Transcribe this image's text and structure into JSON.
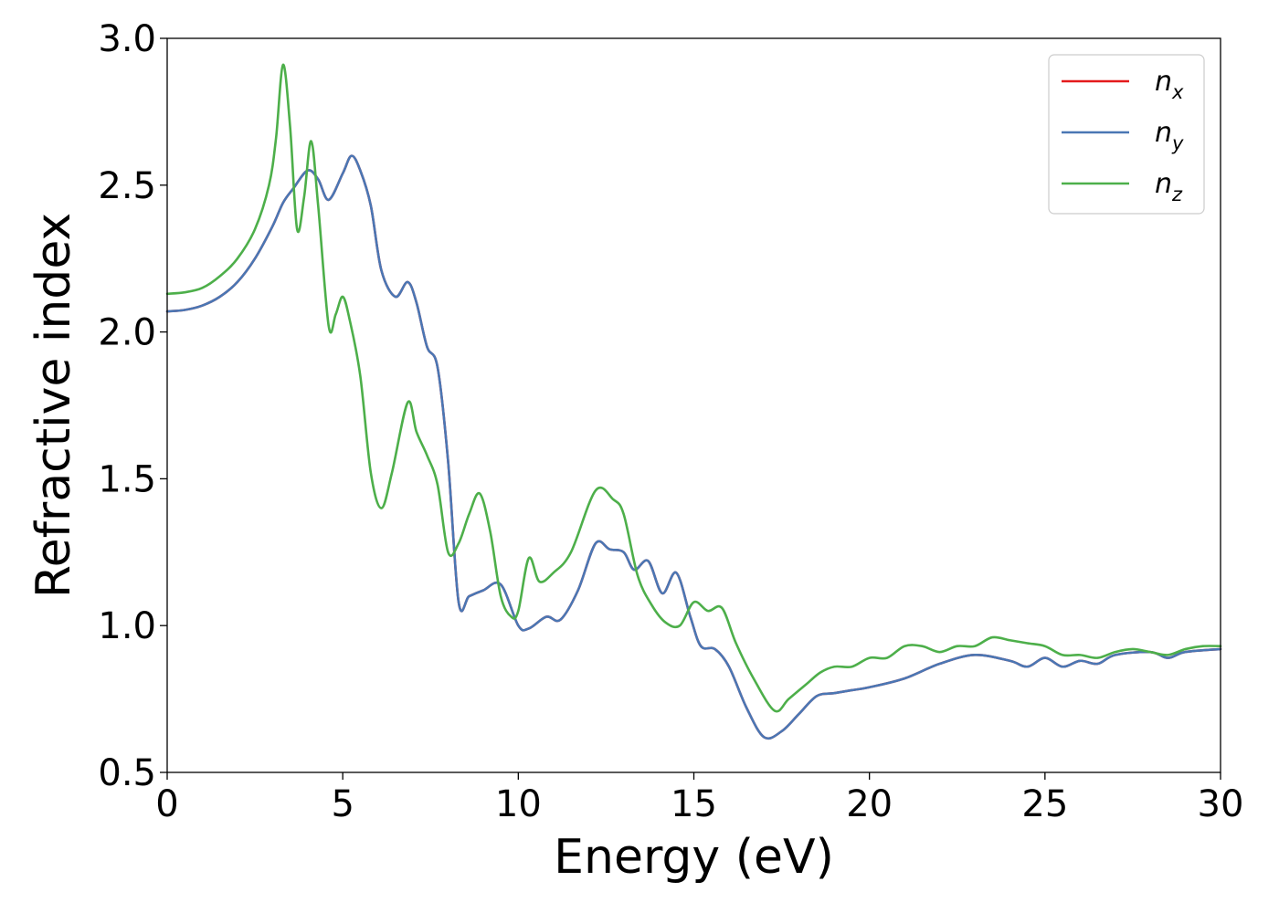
{
  "chart_data": {
    "type": "line",
    "title": "",
    "xlabel": "Energy (eV)",
    "ylabel": "Refractive index",
    "xlim": [
      0,
      30
    ],
    "ylim": [
      0.5,
      3.0
    ],
    "xticks": [
      0,
      5,
      10,
      15,
      20,
      25,
      30
    ],
    "xtick_labels": [
      "0",
      "5",
      "10",
      "15",
      "20",
      "25",
      "30"
    ],
    "yticks": [
      0.5,
      1.0,
      1.5,
      2.0,
      2.5,
      3.0
    ],
    "ytick_labels": [
      "0.5",
      "1.0",
      "1.5",
      "2.0",
      "2.5",
      "3.0"
    ],
    "grid": false,
    "legend_position": "top-right",
    "series": [
      {
        "name": "n_x",
        "label_base": "n",
        "label_sub": "x",
        "color": "#e41a1c",
        "x": [
          0,
          0.5,
          1,
          1.5,
          2,
          2.5,
          3,
          3.3,
          3.6,
          4.0,
          4.3,
          4.6,
          5.0,
          5.25,
          5.5,
          5.8,
          6.1,
          6.5,
          6.85,
          7.1,
          7.4,
          7.7,
          8.0,
          8.3,
          8.6,
          9.0,
          9.5,
          10.0,
          10.3,
          10.8,
          11.2,
          11.7,
          12.2,
          12.6,
          13.0,
          13.3,
          13.7,
          14.1,
          14.5,
          14.9,
          15.2,
          15.6,
          16.0,
          16.5,
          17.0,
          17.5,
          18.0,
          18.5,
          19.0,
          19.5,
          20.0,
          21.0,
          22.0,
          23.0,
          24.0,
          24.5,
          25.0,
          25.5,
          26.0,
          26.5,
          27.0,
          28.0,
          28.5,
          29.0,
          30.0
        ],
        "y": [
          2.07,
          2.075,
          2.09,
          2.12,
          2.17,
          2.25,
          2.36,
          2.44,
          2.49,
          2.55,
          2.52,
          2.45,
          2.54,
          2.6,
          2.55,
          2.43,
          2.21,
          2.12,
          2.17,
          2.1,
          1.95,
          1.88,
          1.56,
          1.08,
          1.1,
          1.12,
          1.14,
          1.0,
          0.99,
          1.03,
          1.02,
          1.12,
          1.28,
          1.26,
          1.25,
          1.19,
          1.22,
          1.11,
          1.18,
          1.03,
          0.93,
          0.92,
          0.86,
          0.72,
          0.62,
          0.64,
          0.7,
          0.76,
          0.77,
          0.78,
          0.79,
          0.82,
          0.87,
          0.9,
          0.88,
          0.86,
          0.89,
          0.86,
          0.88,
          0.87,
          0.9,
          0.91,
          0.89,
          0.91,
          0.92
        ]
      },
      {
        "name": "n_y",
        "label_base": "n",
        "label_sub": "y",
        "color": "#4a77b4",
        "x": [
          0,
          0.5,
          1,
          1.5,
          2,
          2.5,
          3,
          3.3,
          3.6,
          4.0,
          4.3,
          4.6,
          5.0,
          5.25,
          5.5,
          5.8,
          6.1,
          6.5,
          6.85,
          7.1,
          7.4,
          7.7,
          8.0,
          8.3,
          8.6,
          9.0,
          9.5,
          10.0,
          10.3,
          10.8,
          11.2,
          11.7,
          12.2,
          12.6,
          13.0,
          13.3,
          13.7,
          14.1,
          14.5,
          14.9,
          15.2,
          15.6,
          16.0,
          16.5,
          17.0,
          17.5,
          18.0,
          18.5,
          19.0,
          19.5,
          20.0,
          21.0,
          22.0,
          23.0,
          24.0,
          24.5,
          25.0,
          25.5,
          26.0,
          26.5,
          27.0,
          28.0,
          28.5,
          29.0,
          30.0
        ],
        "y": [
          2.07,
          2.075,
          2.09,
          2.12,
          2.17,
          2.25,
          2.36,
          2.44,
          2.49,
          2.55,
          2.52,
          2.45,
          2.54,
          2.6,
          2.55,
          2.43,
          2.21,
          2.12,
          2.17,
          2.1,
          1.95,
          1.88,
          1.56,
          1.08,
          1.1,
          1.12,
          1.14,
          1.0,
          0.99,
          1.03,
          1.02,
          1.12,
          1.28,
          1.26,
          1.25,
          1.19,
          1.22,
          1.11,
          1.18,
          1.03,
          0.93,
          0.92,
          0.86,
          0.72,
          0.62,
          0.64,
          0.7,
          0.76,
          0.77,
          0.78,
          0.79,
          0.82,
          0.87,
          0.9,
          0.88,
          0.86,
          0.89,
          0.86,
          0.88,
          0.87,
          0.9,
          0.91,
          0.89,
          0.91,
          0.92
        ]
      },
      {
        "name": "n_z",
        "label_base": "n",
        "label_sub": "z",
        "color": "#4daf4a",
        "x": [
          0,
          0.5,
          1,
          1.5,
          2,
          2.5,
          2.9,
          3.1,
          3.3,
          3.5,
          3.7,
          3.9,
          4.1,
          4.3,
          4.6,
          4.8,
          5.0,
          5.2,
          5.5,
          5.8,
          6.1,
          6.4,
          6.85,
          7.1,
          7.4,
          7.7,
          8.0,
          8.3,
          8.6,
          8.9,
          9.2,
          9.5,
          9.8,
          10.0,
          10.3,
          10.6,
          11.0,
          11.5,
          12.2,
          12.7,
          13.0,
          13.4,
          13.8,
          14.2,
          14.6,
          15.0,
          15.4,
          15.8,
          16.2,
          16.7,
          17.3,
          17.7,
          18.2,
          18.6,
          19.0,
          19.5,
          20.0,
          20.5,
          21.0,
          21.5,
          22.0,
          22.5,
          23.0,
          23.5,
          24.0,
          24.5,
          25.0,
          25.5,
          26.0,
          26.5,
          27.0,
          27.5,
          28.0,
          28.5,
          29.0,
          29.5,
          30.0
        ],
        "y": [
          2.13,
          2.135,
          2.15,
          2.19,
          2.25,
          2.35,
          2.5,
          2.66,
          2.91,
          2.7,
          2.35,
          2.46,
          2.65,
          2.43,
          2.02,
          2.06,
          2.12,
          2.04,
          1.85,
          1.52,
          1.4,
          1.52,
          1.76,
          1.66,
          1.58,
          1.48,
          1.25,
          1.28,
          1.38,
          1.45,
          1.32,
          1.1,
          1.03,
          1.05,
          1.23,
          1.15,
          1.18,
          1.25,
          1.46,
          1.43,
          1.38,
          1.17,
          1.07,
          1.01,
          1.0,
          1.08,
          1.05,
          1.06,
          0.94,
          0.82,
          0.71,
          0.75,
          0.8,
          0.84,
          0.86,
          0.86,
          0.89,
          0.89,
          0.93,
          0.93,
          0.91,
          0.93,
          0.93,
          0.96,
          0.95,
          0.94,
          0.93,
          0.9,
          0.9,
          0.89,
          0.91,
          0.92,
          0.91,
          0.9,
          0.92,
          0.93,
          0.93
        ]
      }
    ]
  }
}
